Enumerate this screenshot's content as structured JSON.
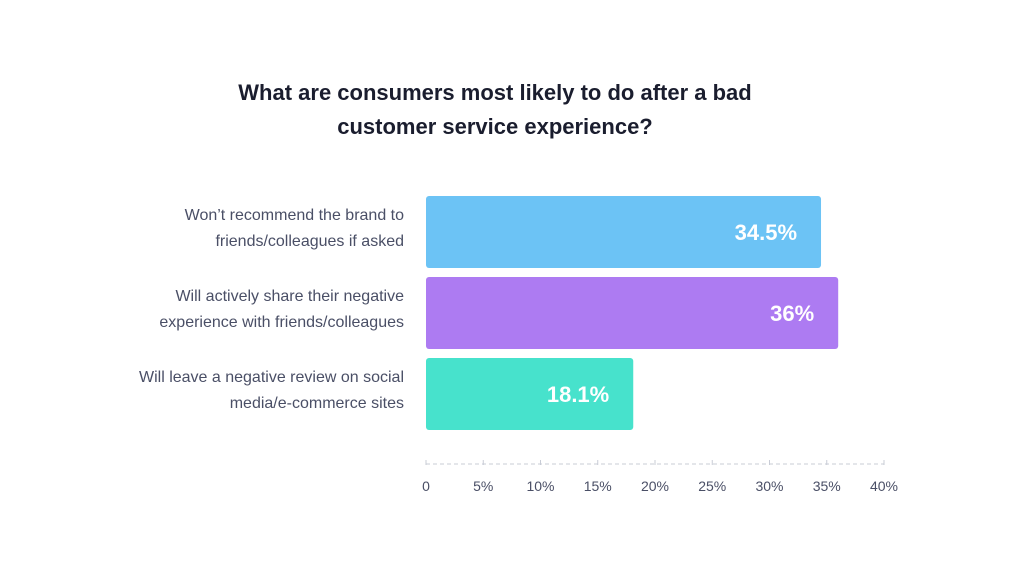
{
  "chart_data": {
    "type": "bar",
    "orientation": "horizontal",
    "title_lines": [
      "What are consumers most likely to do after a bad",
      "customer service experience?"
    ],
    "categories": [
      [
        "Won’t recommend the brand to",
        "friends/colleagues if asked"
      ],
      [
        "Will actively share their negative",
        "experience with friends/colleagues"
      ],
      [
        "Will leave a negative review on social",
        "media/e-commerce sites"
      ]
    ],
    "values": [
      34.5,
      36,
      18.1
    ],
    "value_labels": [
      "34.5%",
      "36%",
      "18.1%"
    ],
    "colors": [
      "#6cc3f5",
      "#ad7bf2",
      "#47e2cc"
    ],
    "xlim": [
      0,
      40
    ],
    "xticks": [
      "0",
      "5%",
      "10%",
      "15%",
      "20%",
      "25%",
      "30%",
      "35%",
      "40%"
    ],
    "grid": false,
    "legend": "none"
  }
}
